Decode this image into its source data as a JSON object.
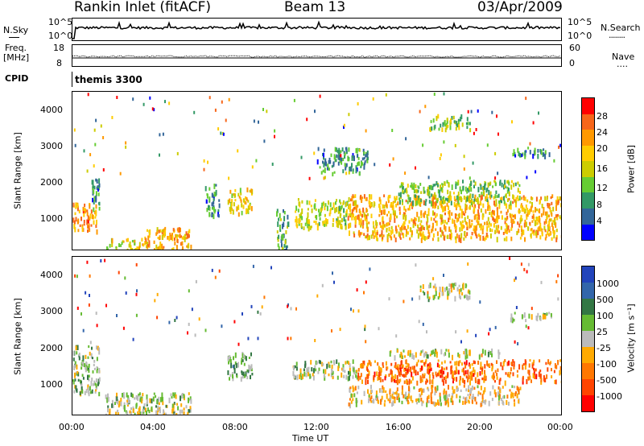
{
  "header": {
    "station": "Rankin Inlet (fitACF)",
    "beam": "Beam 13",
    "date": "03/Apr/2009"
  },
  "nsky_panel": {
    "left_label": "N.Sky",
    "left_ticks": [
      "10^5",
      "10^0"
    ],
    "right_ticks": [
      "10^5",
      "10^0"
    ],
    "right_label": "N.Search",
    "right_label_dots": "........"
  },
  "freq_panel": {
    "left_label_top": "Freq.",
    "left_label_unit": "[MHz]",
    "left_ticks": [
      "18",
      "8"
    ],
    "right_ticks": [
      "60",
      "0"
    ],
    "right_label": "Nave",
    "right_label_dots": "...."
  },
  "cpid_panel": {
    "left_label": "CPID",
    "text": "themis 3300"
  },
  "power_panel": {
    "ylabel": "Slant Range [km]",
    "yticks": [
      "4000",
      "3000",
      "2000",
      "1000"
    ],
    "colorbar_label": "Power [dB]",
    "colorbar_ticks": [
      "28",
      "24",
      "20",
      "16",
      "12",
      "8",
      "4"
    ],
    "colorbar_colors": [
      "#ff0000",
      "#f7661a",
      "#ff9900",
      "#ffcc00",
      "#cccc00",
      "#66cc33",
      "#339966",
      "#336699",
      "#0000ff"
    ]
  },
  "velocity_panel": {
    "ylabel": "Slant Range [km]",
    "yticks": [
      "4000",
      "3000",
      "2000",
      "1000"
    ],
    "colorbar_label": "Velocity [m s⁻¹]",
    "colorbar_ticks": [
      "1000",
      "500",
      "100",
      "25",
      "-25",
      "-100",
      "-500",
      "-1000"
    ],
    "colorbar_colors": [
      "#2244bb",
      "#3366aa",
      "#337744",
      "#66bb33",
      "#bbbbbb",
      "#ffaa00",
      "#ff7700",
      "#ff4400",
      "#ff0000"
    ]
  },
  "x_axis": {
    "ticks": [
      "00:00",
      "04:00",
      "08:00",
      "12:00",
      "16:00",
      "20:00",
      "00:00"
    ],
    "label": "Time UT"
  },
  "chart_data": [
    {
      "type": "heatmap",
      "name": "power",
      "xlabel": "Time UT",
      "ylabel": "Slant Range [km]",
      "xlim": [
        0,
        24
      ],
      "ylim": [
        180,
        4500
      ],
      "colorbar": {
        "label": "Power [dB]",
        "range": [
          0,
          30
        ]
      },
      "regions": [
        {
          "t0": 0.0,
          "t1": 1.2,
          "r0": 700,
          "r1": 1500,
          "level": 22
        },
        {
          "t0": 0.9,
          "t1": 1.3,
          "r0": 1300,
          "r1": 2200,
          "level": 8
        },
        {
          "t0": 1.6,
          "t1": 3.3,
          "r0": 200,
          "r1": 500,
          "level": 16
        },
        {
          "t0": 3.3,
          "t1": 5.8,
          "r0": 200,
          "r1": 800,
          "level": 20
        },
        {
          "t0": 6.5,
          "t1": 7.2,
          "r0": 1100,
          "r1": 2000,
          "level": 8
        },
        {
          "t0": 7.6,
          "t1": 8.8,
          "r0": 1200,
          "r1": 1900,
          "level": 18
        },
        {
          "t0": 10.0,
          "t1": 10.6,
          "r0": 200,
          "r1": 1300,
          "level": 10
        },
        {
          "t0": 10.9,
          "t1": 13.5,
          "r0": 800,
          "r1": 1600,
          "level": 14
        },
        {
          "t0": 13.5,
          "t1": 24.0,
          "r0": 500,
          "r1": 1700,
          "level": 20
        },
        {
          "t0": 16.0,
          "t1": 22.0,
          "r0": 1500,
          "r1": 2100,
          "level": 12
        },
        {
          "t0": 12.0,
          "t1": 14.5,
          "r0": 2300,
          "r1": 3000,
          "level": 8
        },
        {
          "t0": 17.5,
          "t1": 19.5,
          "r0": 3500,
          "r1": 3900,
          "level": 12
        },
        {
          "t0": 21.5,
          "t1": 23.5,
          "r0": 2800,
          "r1": 3000,
          "level": 8
        }
      ]
    },
    {
      "type": "heatmap",
      "name": "velocity",
      "xlabel": "Time UT",
      "ylabel": "Slant Range [km]",
      "xlim": [
        0,
        24
      ],
      "ylim": [
        180,
        4500
      ],
      "colorbar": {
        "label": "Velocity [m s⁻¹]",
        "range": [
          -1000,
          1000
        ]
      },
      "regions": [
        {
          "t0": 0.0,
          "t1": 1.3,
          "r0": 800,
          "r1": 2100,
          "level": 150
        },
        {
          "t0": 1.6,
          "t1": 5.8,
          "r0": 200,
          "r1": 800,
          "level": 50
        },
        {
          "t0": 7.6,
          "t1": 8.8,
          "r0": 1200,
          "r1": 1900,
          "level": 300
        },
        {
          "t0": 10.8,
          "t1": 14.0,
          "r0": 1200,
          "r1": 1700,
          "level": 100
        },
        {
          "t0": 14.0,
          "t1": 24.0,
          "r0": 1100,
          "r1": 1700,
          "level": -500
        },
        {
          "t0": 13.5,
          "t1": 22.0,
          "r0": 500,
          "r1": 1000,
          "level": -150
        },
        {
          "t0": 15.5,
          "t1": 21.0,
          "r0": 1800,
          "r1": 2000,
          "level": 0
        },
        {
          "t0": 17.0,
          "t1": 19.5,
          "r0": 3400,
          "r1": 3800,
          "level": 0
        },
        {
          "t0": 21.5,
          "t1": 23.5,
          "r0": 2800,
          "r1": 3000,
          "level": 0
        }
      ]
    }
  ]
}
